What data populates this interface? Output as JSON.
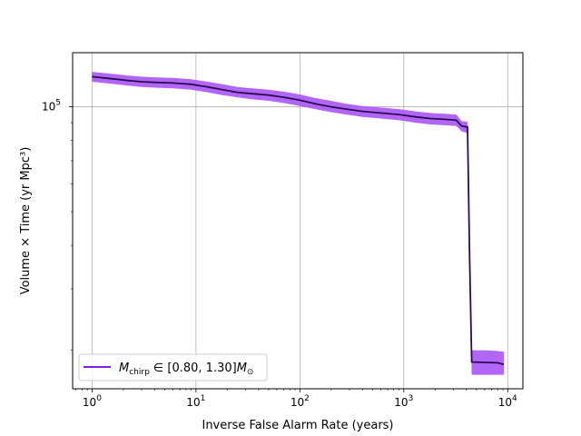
{
  "chart_data": {
    "type": "line",
    "xlabel": "Inverse False Alarm Rate (years)",
    "ylabel": "Volume × Time (yr Mpc³)",
    "x_scale": "log",
    "y_scale": "log",
    "xlim": [
      0.65,
      14000
    ],
    "ylim": [
      15500,
      143000
    ],
    "grid": true,
    "x_ticks": [
      {
        "value": 1,
        "base": "10",
        "exp": "0"
      },
      {
        "value": 10,
        "base": "10",
        "exp": "1"
      },
      {
        "value": 100,
        "base": "10",
        "exp": "2"
      },
      {
        "value": 1000,
        "base": "10",
        "exp": "3"
      },
      {
        "value": 10000,
        "base": "10",
        "exp": "4"
      }
    ],
    "y_ticks": [
      {
        "value": 100000,
        "base": "10",
        "exp": "5"
      }
    ],
    "legend": {
      "placement": "lower-left",
      "label_parts": [
        "M",
        "chirp",
        " ∈ [0.80, 1.30]",
        "M",
        "⊙"
      ]
    },
    "colors": {
      "line": "#2d0a52",
      "band": "#a855f7",
      "legend_line": "#7f1fe6"
    },
    "series": [
      {
        "x": [
          1.0,
          1.3,
          1.7,
          2.2,
          3.0,
          4.0,
          6.0,
          9.0,
          13,
          18,
          25,
          35,
          50,
          70,
          100,
          140,
          200,
          280,
          400,
          600,
          900,
          1300,
          1800,
          2500,
          3200,
          3600,
          4100,
          4300,
          4500,
          6000,
          8000,
          9200
        ],
        "y": [
          122000,
          121000,
          120000,
          119000,
          118000,
          117500,
          117000,
          116000,
          114000,
          112000,
          110000,
          109000,
          108000,
          106500,
          104500,
          102000,
          100000,
          98500,
          97000,
          96000,
          95000,
          93500,
          92500,
          92000,
          91500,
          88000,
          87500,
          37000,
          18500,
          18450,
          18400,
          18200
        ],
        "y_lo": [
          118000,
          117000,
          116000,
          115000,
          114000,
          113500,
          113000,
          112000,
          110000,
          108000,
          106500,
          105000,
          104000,
          102500,
          100500,
          98500,
          96500,
          95000,
          93500,
          92500,
          91500,
          90000,
          89000,
          88500,
          88000,
          85000,
          84000,
          35500,
          17000,
          17000,
          17000,
          17000
        ],
        "y_hi": [
          126000,
          125000,
          124000,
          123000,
          122000,
          121500,
          121000,
          120000,
          118000,
          116000,
          114000,
          113000,
          112000,
          110500,
          108500,
          106000,
          104000,
          102000,
          100500,
          99500,
          98500,
          97000,
          96000,
          95500,
          95000,
          91000,
          90500,
          38500,
          20000,
          20000,
          19900,
          19800
        ]
      }
    ]
  }
}
